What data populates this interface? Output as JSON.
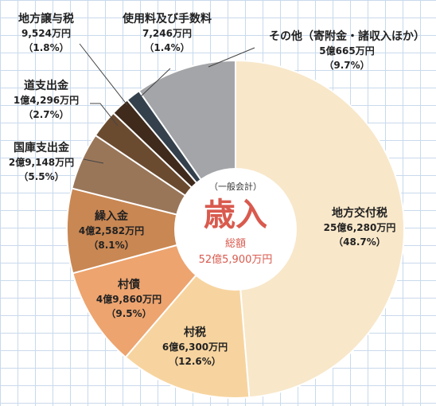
{
  "chart_data": {
    "type": "pie",
    "center": {
      "subtitle": "（一般会計）",
      "title": "歳入",
      "total_label": "総額",
      "total_value": "52億5,900万円"
    },
    "slices": [
      {
        "name": "地方交付税",
        "amount": "25億6,280万円",
        "pct_label": "（48.7%）",
        "value": 48.7,
        "color": "#f8e7c9"
      },
      {
        "name": "村税",
        "amount": "6億6,300万円",
        "pct_label": "（12.6%）",
        "value": 12.6,
        "color": "#f7d49f"
      },
      {
        "name": "村債",
        "amount": "4億9,860万円",
        "pct_label": "（9.5%）",
        "value": 9.5,
        "color": "#eda46f"
      },
      {
        "name": "繰入金",
        "amount": "4億2,582万円",
        "pct_label": "（8.1%）",
        "value": 8.1,
        "color": "#c98753"
      },
      {
        "name": "国庫支出金",
        "amount": "2億9,148万円",
        "pct_label": "（5.5%）",
        "value": 5.5,
        "color": "#9a7659"
      },
      {
        "name": "道支出金",
        "amount": "1億4,296万円",
        "pct_label": "（2.7%）",
        "value": 2.7,
        "color": "#6b4b30"
      },
      {
        "name": "地方譲与税",
        "amount": "9,524万円",
        "pct_label": "（1.8%）",
        "value": 1.8,
        "color": "#3f2a1c"
      },
      {
        "name": "使用料及び手数料",
        "amount": "7,246万円",
        "pct_label": "（1.4%）",
        "value": 1.4,
        "color": "#34414d"
      },
      {
        "name": "その他（寄附金・諸収入ほか）",
        "amount": "5億665万円",
        "pct_label": "（9.7%）",
        "value": 9.7,
        "color": "#a3a5a8"
      }
    ]
  }
}
